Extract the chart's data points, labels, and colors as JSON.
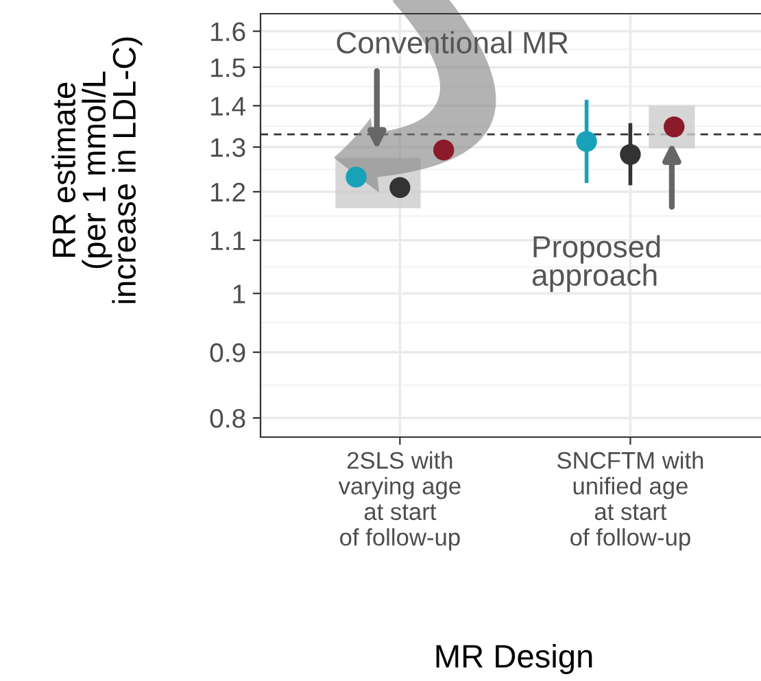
{
  "chart_data": {
    "type": "scatter",
    "categories": [
      "2SLS with\nvarying age\nat start\nof follow-up",
      "SNCFTM with\nunified age\nat start\nof follow-up"
    ],
    "series": [
      {
        "color": "#17a2b8",
        "values": [
          1.232,
          1.313
        ],
        "errors": [
          null,
          [
            1.219,
            1.415
          ]
        ]
      },
      {
        "color": "#333333",
        "values": [
          1.209,
          1.283
        ],
        "errors": [
          null,
          [
            1.214,
            1.357
          ]
        ]
      },
      {
        "color": "#8b1a2a",
        "values": [
          1.293,
          1.348
        ],
        "errors": [
          null,
          null
        ]
      }
    ],
    "xlabel": "MR Design",
    "ylabel": "RR estimate\n(per 1 mmol/L\nincrease in LDL-C)",
    "log": "y",
    "ylim": [
      0.773,
      1.651
    ],
    "yticks": [
      0.8,
      0.9,
      1,
      1.1,
      1.2,
      1.3,
      1.4,
      1.5,
      1.6
    ],
    "ref_lines": [
      {
        "axis": "y",
        "value": 1.33,
        "line_style": "dashed",
        "color": "#333333"
      }
    ],
    "annotations": [
      "Conventional MR",
      "Proposed\napproach"
    ],
    "grid": true,
    "marker": "circle"
  }
}
